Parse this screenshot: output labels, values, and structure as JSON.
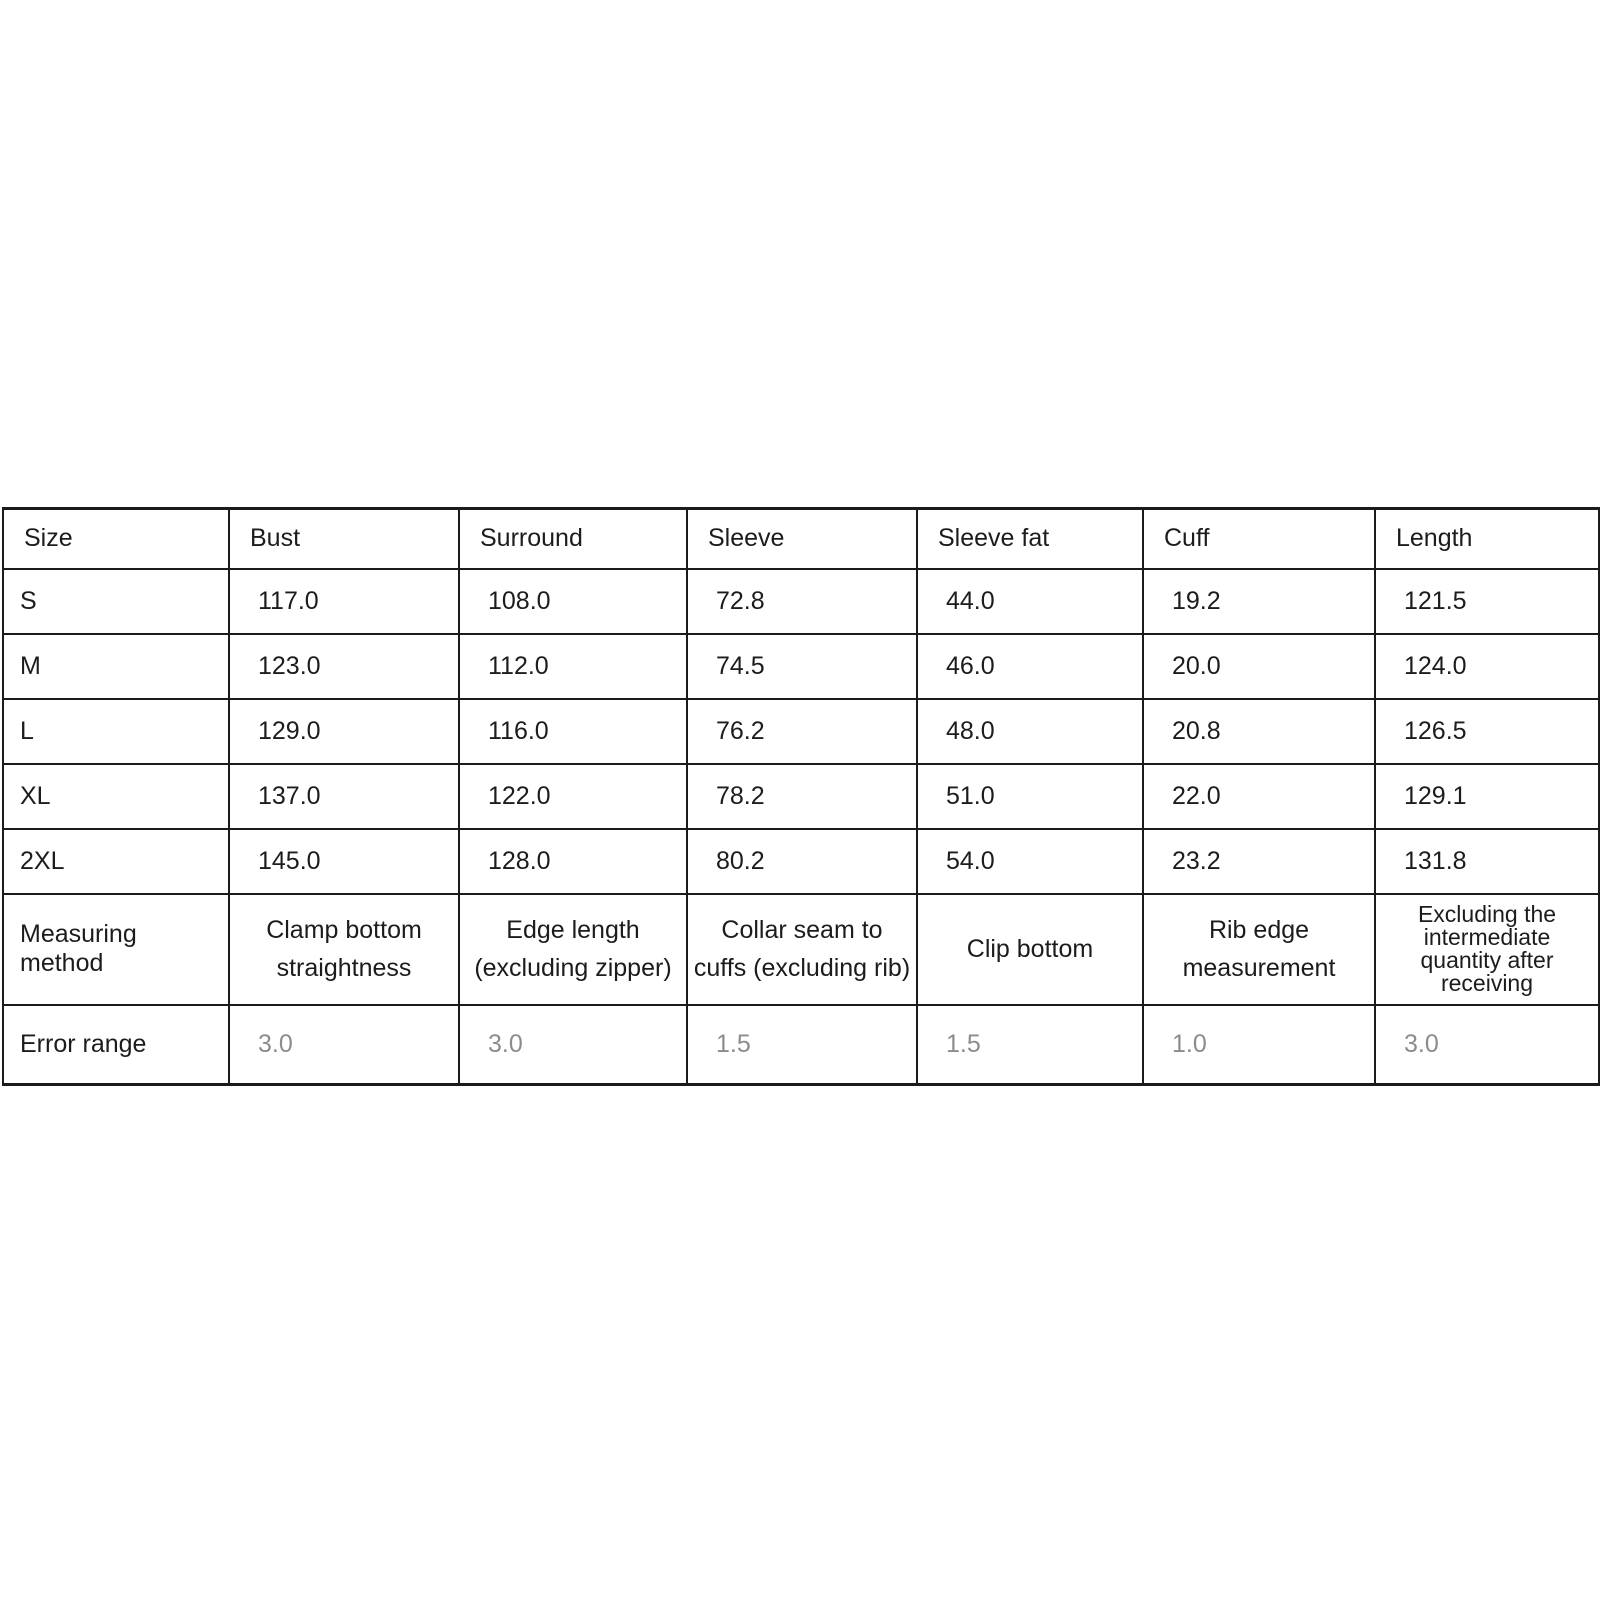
{
  "chart_data": {
    "type": "table",
    "columns": [
      "Size",
      "Bust",
      "Surround",
      "Sleeve",
      "Sleeve fat",
      "Cuff",
      "Length"
    ],
    "rows": [
      {
        "size": "S",
        "values": [
          "117.0",
          "108.0",
          "72.8",
          "44.0",
          "19.2",
          "121.5"
        ]
      },
      {
        "size": "M",
        "values": [
          "123.0",
          "112.0",
          "74.5",
          "46.0",
          "20.0",
          "124.0"
        ]
      },
      {
        "size": "L",
        "values": [
          "129.0",
          "116.0",
          "76.2",
          "48.0",
          "20.8",
          "126.5"
        ]
      },
      {
        "size": "XL",
        "values": [
          "137.0",
          "122.0",
          "78.2",
          "51.0",
          "22.0",
          "129.1"
        ]
      },
      {
        "size": "2XL",
        "values": [
          "145.0",
          "128.0",
          "80.2",
          "54.0",
          "23.2",
          "131.8"
        ]
      }
    ],
    "measuring_method": {
      "label": "Measuring method",
      "methods": [
        "Clamp bottom\nstraightness",
        "Edge length\n(excluding zipper)",
        "Collar seam to\ncuffs (excluding rib)",
        "Clip bottom",
        "Rib edge\nmeasurement",
        "Excluding the\nintermediate\nquantity after\nreceiving"
      ]
    },
    "error_range": {
      "label": "Error range",
      "values": [
        "3.0",
        "3.0",
        "1.5",
        "1.5",
        "1.0",
        "3.0"
      ]
    }
  },
  "colors": {
    "background": "#ffffff",
    "grid_border": "#1b1b1b",
    "text": "#1c1c1c",
    "error_value_text": "#8c8c8c"
  }
}
